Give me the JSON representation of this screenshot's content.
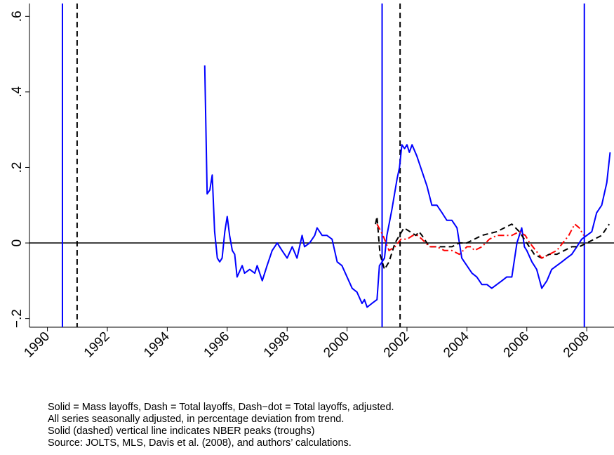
{
  "chart_data": {
    "type": "line",
    "xlim": [
      1989.4,
      2008.91
    ],
    "xticks": [
      1990,
      1992,
      1994,
      1996,
      1998,
      2000,
      2002,
      2004,
      2006,
      2008
    ],
    "ylim": [
      -0.223,
      0.634
    ],
    "yticks": [
      {
        "value": -0.2,
        "label": "−.2"
      },
      0,
      {
        "value": 0.2,
        "label": ".2"
      },
      {
        "value": 0.4,
        "label": ".4"
      },
      {
        "value": 0.6,
        "label": ".6"
      }
    ],
    "hline": {
      "y": 0,
      "color": "#000000"
    },
    "reference_lines": [
      {
        "x": 1990.5,
        "color": "#0000ff",
        "style": "solid"
      },
      {
        "x": 1990.99,
        "color": "#000000",
        "style": "dashed"
      },
      {
        "x": 2001.17,
        "color": "#0000ff",
        "style": "solid"
      },
      {
        "x": 2001.77,
        "color": "#000000",
        "style": "dashed"
      },
      {
        "x": 2007.92,
        "color": "#0000ff",
        "style": "solid"
      }
    ],
    "series": [
      {
        "color": "#0000ff",
        "style": "solid",
        "x": [
          1995.25,
          1995.33,
          1995.42,
          1995.5,
          1995.58,
          1995.67,
          1995.75,
          1995.83,
          1995.92,
          1996.0,
          1996.08,
          1996.17,
          1996.25,
          1996.33,
          1996.5,
          1996.58,
          1996.75,
          1996.92,
          1997.0,
          1997.17,
          1997.33,
          1997.5,
          1997.67,
          1997.83,
          1998.0,
          1998.17,
          1998.33,
          1998.5,
          1998.58,
          1998.75,
          1998.92,
          1999.0,
          1999.17,
          1999.33,
          1999.5,
          1999.67,
          1999.83,
          2000.0,
          2000.17,
          2000.33,
          2000.5,
          2000.58,
          2000.67,
          2000.83,
          2001.0,
          2001.08,
          2001.17,
          2001.25,
          2001.33,
          2001.5,
          2001.67,
          2001.75,
          2001.83,
          2001.92,
          2002.0,
          2002.08,
          2002.17,
          2002.33,
          2002.5,
          2002.67,
          2002.83,
          2003.0,
          2003.17,
          2003.33,
          2003.5,
          2003.67,
          2003.83,
          2004.0,
          2004.17,
          2004.33,
          2004.5,
          2004.67,
          2004.83,
          2005.0,
          2005.17,
          2005.33,
          2005.5,
          2005.67,
          2005.83,
          2005.92,
          2006.0,
          2006.17,
          2006.33,
          2006.5,
          2006.67,
          2006.83,
          2007.0,
          2007.17,
          2007.33,
          2007.5,
          2007.67,
          2007.83,
          2008.0,
          2008.17,
          2008.33,
          2008.5,
          2008.67,
          2008.78
        ],
        "values": [
          0.47,
          0.13,
          0.14,
          0.18,
          0.03,
          -0.04,
          -0.05,
          -0.04,
          0.03,
          0.07,
          0.02,
          -0.02,
          -0.03,
          -0.09,
          -0.06,
          -0.08,
          -0.07,
          -0.08,
          -0.06,
          -0.1,
          -0.06,
          -0.02,
          0.0,
          -0.02,
          -0.04,
          -0.01,
          -0.04,
          0.02,
          -0.01,
          0.0,
          0.02,
          0.04,
          0.02,
          0.02,
          0.01,
          -0.05,
          -0.06,
          -0.09,
          -0.12,
          -0.13,
          -0.16,
          -0.15,
          -0.17,
          -0.16,
          -0.15,
          -0.06,
          -0.05,
          -0.04,
          0.02,
          0.09,
          0.17,
          0.2,
          0.26,
          0.25,
          0.26,
          0.24,
          0.26,
          0.23,
          0.19,
          0.15,
          0.1,
          0.1,
          0.08,
          0.06,
          0.06,
          0.04,
          -0.04,
          -0.06,
          -0.08,
          -0.09,
          -0.11,
          -0.11,
          -0.12,
          -0.11,
          -0.1,
          -0.09,
          -0.09,
          0.0,
          0.04,
          -0.01,
          -0.02,
          -0.05,
          -0.07,
          -0.12,
          -0.1,
          -0.07,
          -0.06,
          -0.05,
          -0.04,
          -0.03,
          -0.01,
          0.01,
          0.02,
          0.03,
          0.08,
          0.1,
          0.16,
          0.24
        ]
      },
      {
        "color": "#000000",
        "style": "dashed",
        "x": [
          2000.95,
          2001.0,
          2001.1,
          2001.25,
          2001.4,
          2001.6,
          2001.9,
          2002.1,
          2002.3,
          2002.4,
          2002.5,
          2002.75,
          2003.0,
          2003.25,
          2003.5,
          2003.75,
          2004.0,
          2004.25,
          2004.5,
          2005.0,
          2005.25,
          2005.5,
          2005.75,
          2006.0,
          2006.25,
          2006.5,
          2006.75,
          2007.0,
          2007.25,
          2007.5,
          2007.75,
          2008.0,
          2008.25,
          2008.5,
          2008.75
        ],
        "values": [
          0.05,
          0.07,
          -0.03,
          -0.07,
          -0.05,
          0.0,
          0.04,
          0.03,
          0.02,
          0.03,
          0.02,
          -0.01,
          -0.01,
          -0.01,
          -0.01,
          0.0,
          0.0,
          0.01,
          0.02,
          0.03,
          0.04,
          0.05,
          0.03,
          0.0,
          -0.03,
          -0.04,
          -0.03,
          -0.03,
          -0.02,
          -0.01,
          -0.01,
          0.0,
          0.01,
          0.02,
          0.05
        ]
      },
      {
        "color": "#ff0000",
        "style": "dashdot",
        "x": [
          2001.0,
          2001.2,
          2001.4,
          2001.6,
          2001.8,
          2002.0,
          2002.2,
          2002.35,
          2002.5,
          2002.75,
          2003.0,
          2003.25,
          2003.5,
          2003.75,
          2004.0,
          2004.15,
          2004.25,
          2004.5,
          2004.75,
          2005.0,
          2005.25,
          2005.5,
          2005.75,
          2005.95,
          2006.1,
          2006.3,
          2006.5,
          2006.75,
          2007.0,
          2007.2,
          2007.4,
          2007.6,
          2007.75,
          2007.9
        ],
        "values": [
          0.05,
          0.02,
          -0.02,
          -0.01,
          0.01,
          0.01,
          0.02,
          0.02,
          0.01,
          -0.01,
          -0.01,
          -0.02,
          -0.02,
          -0.03,
          -0.01,
          -0.01,
          -0.02,
          -0.01,
          0.01,
          0.02,
          0.02,
          0.02,
          0.03,
          0.02,
          0.0,
          -0.02,
          -0.04,
          -0.03,
          -0.02,
          0.0,
          0.02,
          0.05,
          0.04,
          0.02
        ]
      }
    ],
    "notes": [
      "Solid = Mass layoffs, Dash = Total layoffs, Dash−dot = Total layoffs, adjusted.",
      "All series seasonally adjusted, in percentage deviation from trend.",
      "Solid (dashed) vertical line indicates NBER peaks (troughs)",
      "Source: JOLTS, MLS, Davis et al. (2008), and authors’ calculations."
    ]
  }
}
